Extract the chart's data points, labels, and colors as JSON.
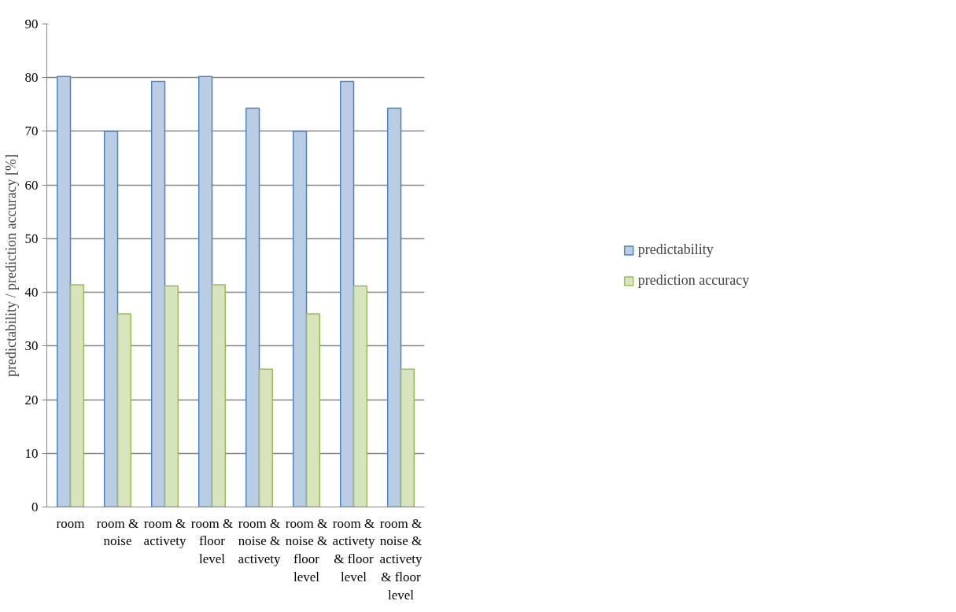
{
  "chart_data": {
    "type": "bar",
    "ylabel": "predictability / prediction accuracy [%]",
    "categories": [
      "room",
      "room & noise",
      "room & activety",
      "room & floor level",
      "room & noise & activety",
      "room & noise & floor level",
      "room & activety & floor level",
      "room & noise & activety & floor level"
    ],
    "series": [
      {
        "name": "predictability",
        "color": "#b9cde5",
        "values": [
          80.2,
          70.0,
          79.3,
          80.2,
          74.3,
          70.0,
          79.3,
          74.3
        ]
      },
      {
        "name": "prediction accuracy",
        "color": "#d7e4bd",
        "values": [
          41.4,
          36.0,
          41.2,
          41.4,
          25.7,
          36.0,
          41.2,
          25.7
        ]
      }
    ],
    "ylim": [
      0,
      90
    ],
    "yticks": [
      0,
      10,
      20,
      30,
      40,
      50,
      60,
      70,
      80,
      90
    ],
    "grid": "y",
    "legend": "right"
  }
}
